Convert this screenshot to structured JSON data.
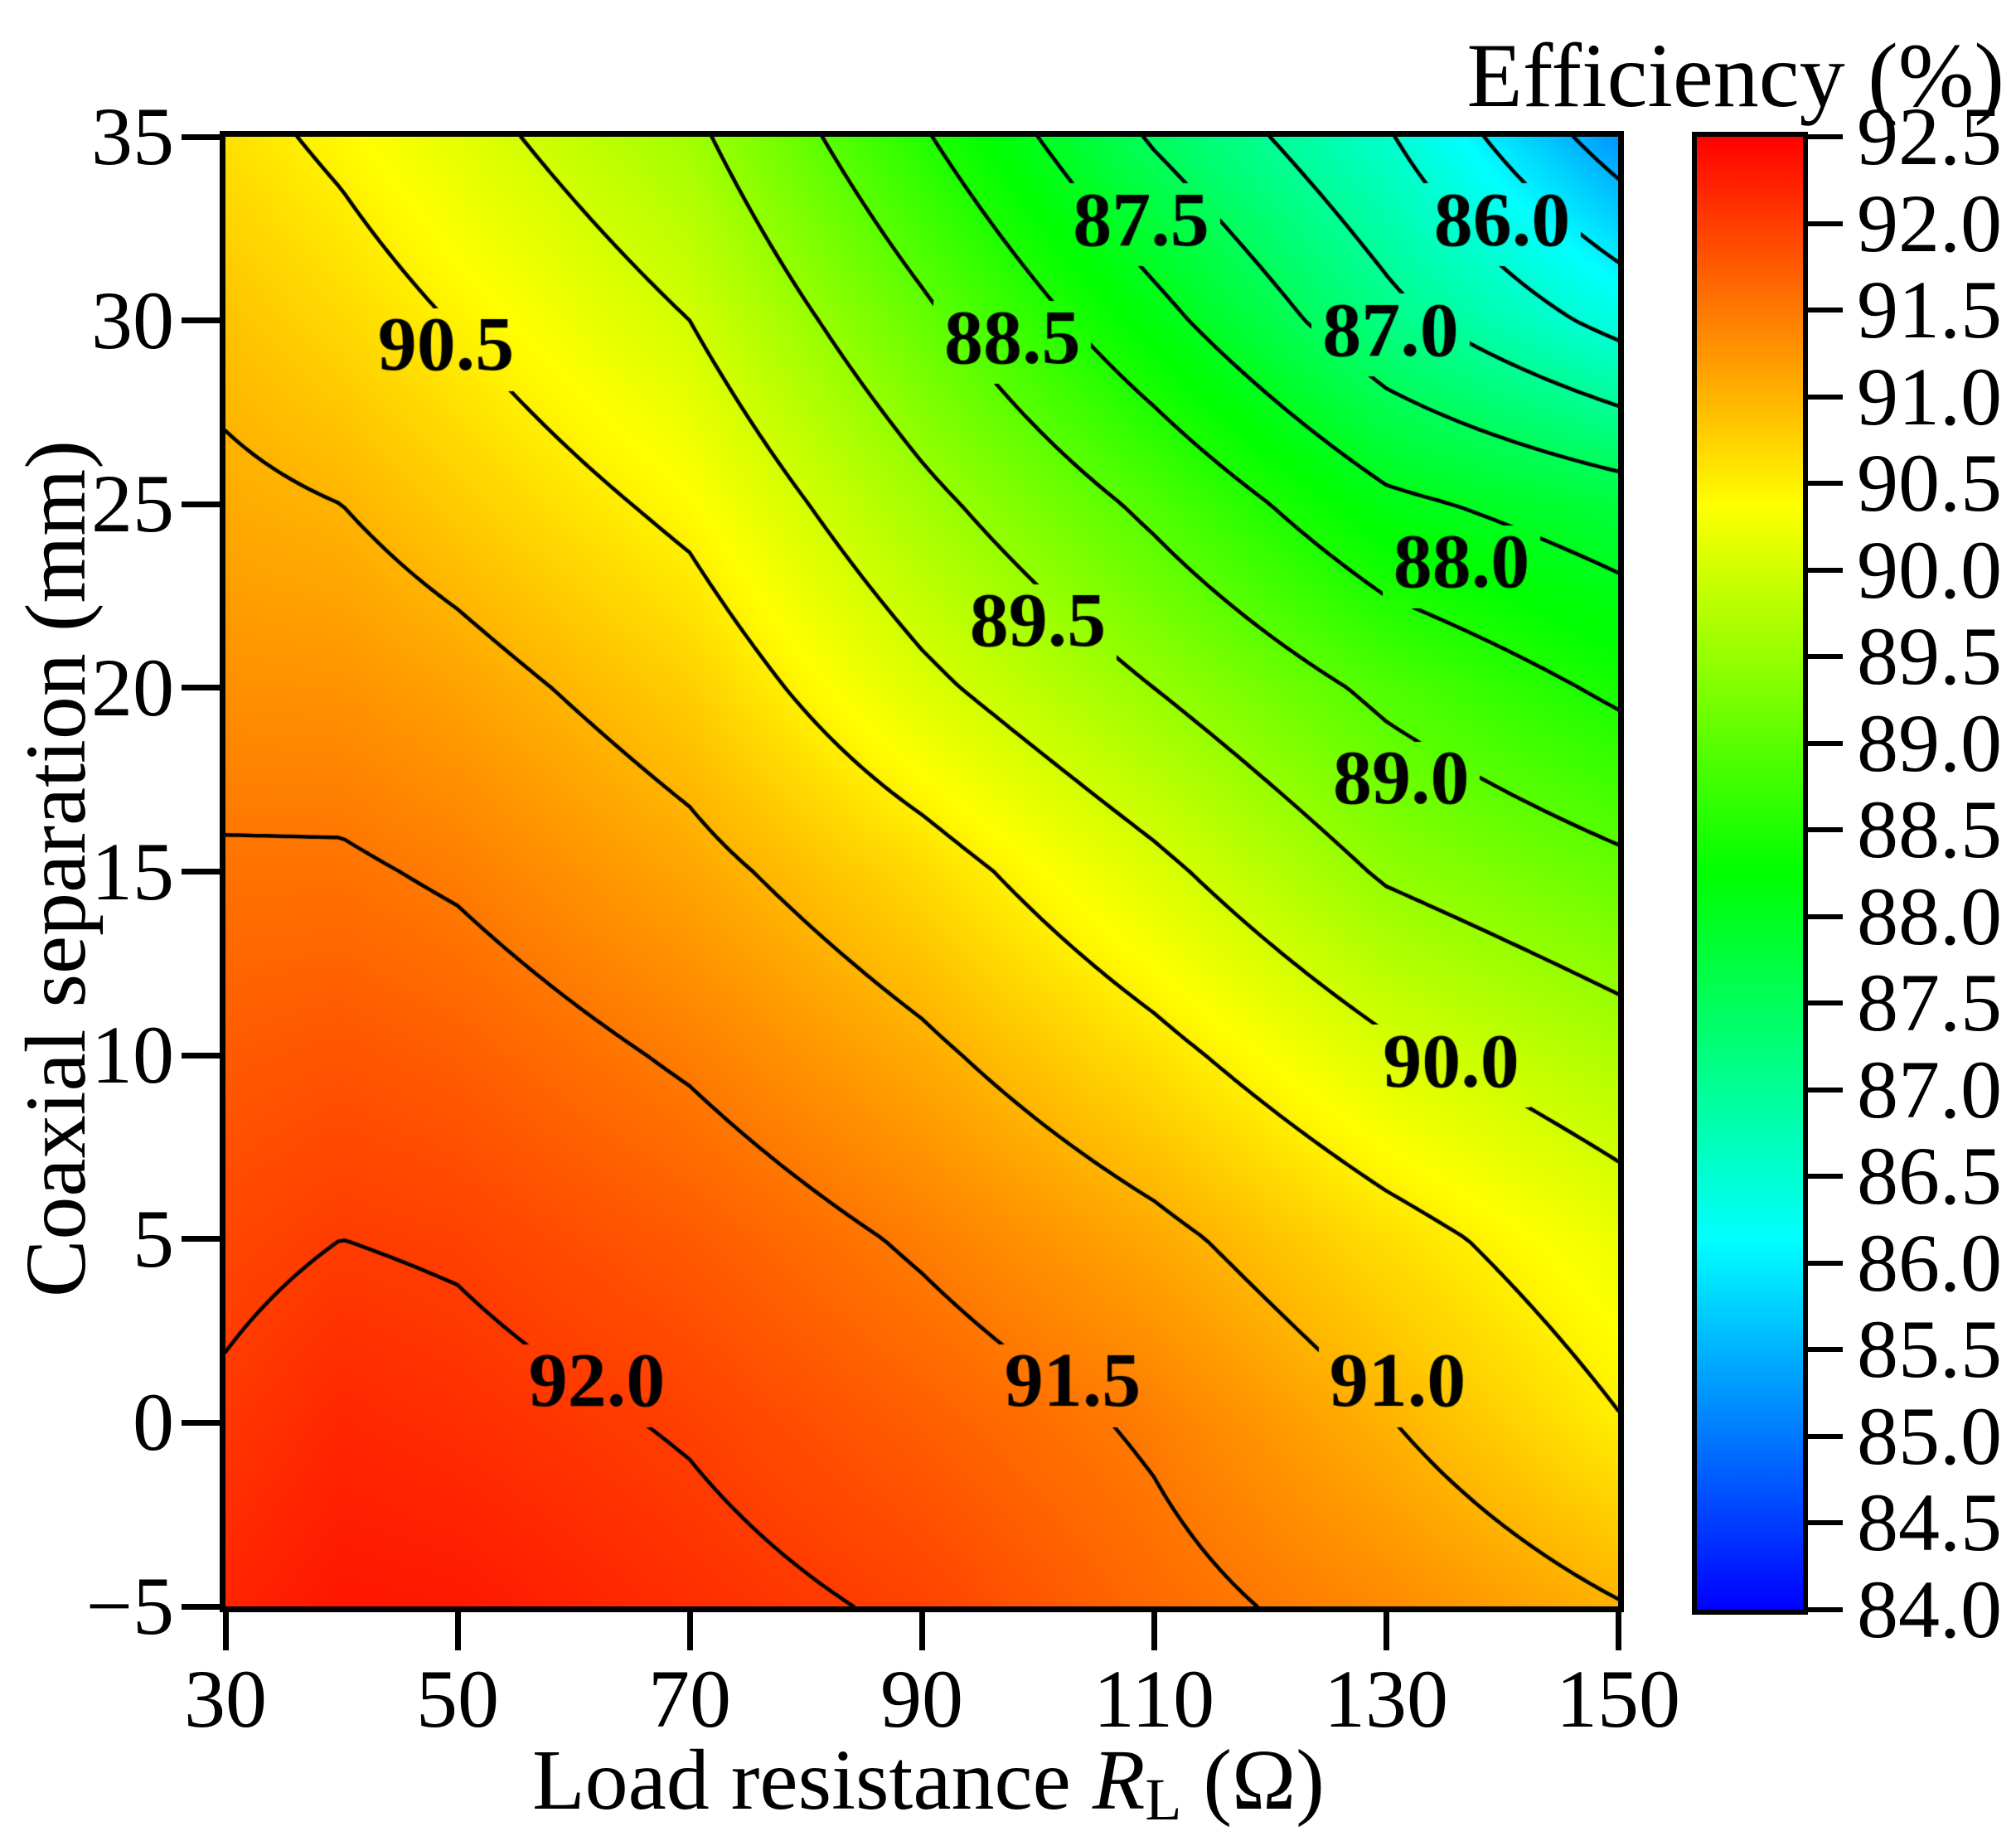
{
  "title": "Efficiency (%)",
  "axes": {
    "x": {
      "label_prefix": "Load resistance ",
      "label_var": "R",
      "label_sub": "L",
      "label_suffix": " (Ω)",
      "tick_values": [
        30,
        50,
        70,
        90,
        110,
        130,
        150
      ],
      "tick_labels": [
        "30",
        "50",
        "70",
        "90",
        "110",
        "130",
        "150"
      ],
      "range": [
        30,
        150
      ]
    },
    "y": {
      "label": "Coaxial separation (mm)",
      "tick_values": [
        35,
        30,
        25,
        20,
        15,
        10,
        5,
        0,
        -5
      ],
      "tick_labels": [
        "35",
        "30",
        "25",
        "20",
        "15",
        "10",
        "5",
        "0",
        "−5"
      ],
      "range": [
        -5,
        35
      ]
    }
  },
  "colorbar": {
    "tick_values": [
      92.5,
      92.0,
      91.5,
      91.0,
      90.5,
      90.0,
      89.5,
      89.0,
      88.5,
      88.0,
      87.5,
      87.0,
      86.5,
      86.0,
      85.5,
      85.0,
      84.5,
      84.0
    ],
    "tick_labels": [
      "92.5",
      "92.0",
      "91.5",
      "91.0",
      "90.5",
      "90.0",
      "89.5",
      "89.0",
      "88.5",
      "88.0",
      "87.5",
      "87.0",
      "86.5",
      "86.0",
      "85.5",
      "85.0",
      "84.5",
      "84.0"
    ],
    "range": [
      84.0,
      92.5
    ],
    "color_top": "#ff0000",
    "color_bottom": "#0000ff",
    "colormap": "rainbow-hsv blue(84.0) to red(92.5)"
  },
  "chart_data": {
    "type": "heatmap",
    "title": "Efficiency (%)",
    "xlabel": "Load resistance RL (Ω)",
    "ylabel": "Coaxial separation (mm)",
    "x_load_resistance_ohm": [
      30,
      40,
      50,
      70,
      90,
      110,
      130,
      150
    ],
    "y_coaxial_separation_mm": [
      35,
      30,
      25,
      20,
      15,
      10,
      5,
      0,
      -5
    ],
    "z_efficiency_percent": [
      [
        90.63,
        90.42,
        90.15,
        89.6,
        88.55,
        87.45,
        86.55,
        85.25
      ],
      [
        90.88,
        90.7,
        90.48,
        90.0,
        89.1,
        88.15,
        87.15,
        86.35
      ],
      [
        91.08,
        91.0,
        90.8,
        90.4,
        89.62,
        88.9,
        88.1,
        87.75
      ],
      [
        91.3,
        91.28,
        91.15,
        90.78,
        90.1,
        89.5,
        88.9,
        88.42
      ],
      [
        91.55,
        91.55,
        91.45,
        91.12,
        90.68,
        90.1,
        89.45,
        89.1
      ],
      [
        91.75,
        91.8,
        91.72,
        91.45,
        91.08,
        90.62,
        90.08,
        89.7
      ],
      [
        91.92,
        92.0,
        91.96,
        91.75,
        91.45,
        91.1,
        90.65,
        90.22
      ],
      [
        92.05,
        92.18,
        92.12,
        91.97,
        91.72,
        91.45,
        91.02,
        90.52
      ],
      [
        92.2,
        92.32,
        92.3,
        92.12,
        91.95,
        91.62,
        91.35,
        91.02
      ]
    ],
    "zlim": [
      84.0,
      92.5
    ],
    "contour_levels": [
      84.5,
      85.0,
      85.5,
      86.0,
      86.5,
      87.0,
      87.5,
      88.0,
      88.5,
      89.0,
      89.5,
      90.0,
      90.5,
      91.0,
      91.5,
      92.0
    ],
    "contour_labels": [
      {
        "text": "90.5",
        "x": 49.0,
        "y": 29.2
      },
      {
        "text": "87.5",
        "x": 108.9,
        "y": 32.6
      },
      {
        "text": "86.0",
        "x": 140.0,
        "y": 32.6
      },
      {
        "text": "88.5",
        "x": 97.8,
        "y": 29.4
      },
      {
        "text": "87.0",
        "x": 130.4,
        "y": 29.6
      },
      {
        "text": "88.0",
        "x": 136.5,
        "y": 23.3
      },
      {
        "text": "89.5",
        "x": 100.0,
        "y": 21.7
      },
      {
        "text": "89.0",
        "x": 131.3,
        "y": 17.4
      },
      {
        "text": "90.0",
        "x": 135.6,
        "y": 9.7
      },
      {
        "text": "92.0",
        "x": 62.0,
        "y": 1.0
      },
      {
        "text": "91.5",
        "x": 103.0,
        "y": 1.0
      },
      {
        "text": "91.0",
        "x": 131.0,
        "y": 1.0
      }
    ],
    "grid": false,
    "legend_position": "colorbar right"
  }
}
